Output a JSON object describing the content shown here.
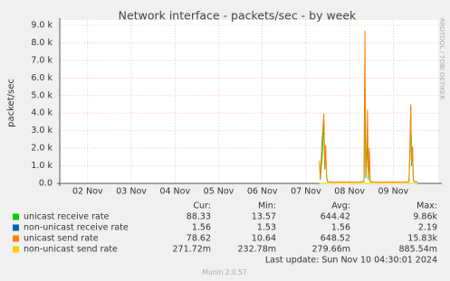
{
  "chart_data": {
    "type": "line",
    "title": "Network interface  - packets/sec - by week",
    "y_label": "packet/sec",
    "side_text": "RRDTOOL / TOBI OETIKER",
    "xlim": [
      1.36,
      10.03
    ],
    "xticks": [
      {
        "value": 2,
        "label": "02 Nov"
      },
      {
        "value": 3,
        "label": "03 Nov"
      },
      {
        "value": 4,
        "label": "04 Nov"
      },
      {
        "value": 5,
        "label": "05 Nov"
      },
      {
        "value": 6,
        "label": "06 Nov"
      },
      {
        "value": 7,
        "label": "07 Nov"
      },
      {
        "value": 8,
        "label": "08 Nov"
      },
      {
        "value": 9,
        "label": "09 Nov"
      }
    ],
    "ylim": [
      0,
      9000
    ],
    "yticks": [
      {
        "value": 0,
        "label": "0.0"
      },
      {
        "value": 1000,
        "label": "1.0 k"
      },
      {
        "value": 2000,
        "label": "2.0 k"
      },
      {
        "value": 3000,
        "label": "3.0 k"
      },
      {
        "value": 4000,
        "label": "4.0 k"
      },
      {
        "value": 5000,
        "label": "5.0 k"
      },
      {
        "value": 6000,
        "label": "6.0 k"
      },
      {
        "value": 7000,
        "label": "7.0 k"
      },
      {
        "value": 8000,
        "label": "8.0 k"
      },
      {
        "value": 9000,
        "label": "9.0 k"
      }
    ],
    "grid": true,
    "x": [
      7.31,
      7.33,
      7.37,
      7.41,
      7.43,
      7.45,
      7.47,
      7.49,
      7.53,
      7.6,
      7.8,
      8.0,
      8.2,
      8.33,
      8.35,
      8.37,
      8.39,
      8.41,
      8.43,
      8.45,
      8.47,
      8.49,
      8.54,
      8.7,
      8.9,
      9.1,
      9.3,
      9.36,
      9.38,
      9.4,
      9.42,
      9.44,
      9.46,
      9.48,
      9.5,
      9.55
    ],
    "series": [
      {
        "name": "unicast receive rate",
        "color": "#00cc00",
        "values": [
          1100,
          200,
          1500,
          3600,
          800,
          2100,
          400,
          100,
          90,
          80,
          80,
          80,
          80,
          100,
          5800,
          300,
          1200,
          2400,
          200,
          1800,
          100,
          90,
          85,
          80,
          80,
          80,
          80,
          100,
          1500,
          4400,
          1000,
          2000,
          200,
          90,
          88,
          88
        ]
      },
      {
        "name": "non-unicast receive rate",
        "color": "#0066b3",
        "values": [
          1.6,
          1.6,
          1.6,
          1.6,
          1.6,
          1.6,
          1.6,
          1.6,
          1.6,
          1.6,
          1.6,
          1.6,
          1.6,
          1.6,
          1.6,
          1.6,
          1.6,
          1.6,
          1.6,
          1.6,
          1.6,
          1.6,
          1.6,
          1.6,
          1.6,
          1.6,
          1.6,
          1.6,
          1.6,
          1.6,
          1.6,
          1.6,
          1.6,
          1.6,
          1.6,
          1.6
        ]
      },
      {
        "name": "unicast send rate",
        "color": "#ff8000",
        "values": [
          1300,
          300,
          2500,
          4000,
          900,
          2200,
          500,
          100,
          90,
          80,
          80,
          80,
          80,
          120,
          8700,
          500,
          1500,
          4200,
          300,
          2000,
          150,
          90,
          85,
          80,
          80,
          80,
          80,
          120,
          1800,
          4500,
          1200,
          2100,
          250,
          90,
          79,
          79
        ]
      },
      {
        "name": "non-unicast send rate",
        "color": "#ffcc00",
        "values": [
          0.28,
          0.28,
          0.28,
          0.28,
          0.28,
          0.28,
          0.28,
          0.28,
          0.28,
          0.28,
          0.28,
          0.28,
          0.28,
          0.28,
          0.28,
          0.28,
          0.28,
          0.28,
          0.28,
          0.28,
          0.28,
          0.28,
          0.28,
          0.28,
          0.28,
          0.28,
          0.28,
          0.28,
          0.28,
          0.28,
          0.28,
          0.28,
          0.28,
          0.28,
          0.28,
          0.28
        ]
      }
    ],
    "stats": {
      "headers": [
        "Cur:",
        "Min:",
        "Avg:",
        "Max:"
      ],
      "rows": [
        [
          "88.33",
          "13.57",
          "644.42",
          "9.86k"
        ],
        [
          "1.56",
          "1.53",
          "1.56",
          "2.19"
        ],
        [
          "78.62",
          "10.64",
          "648.52",
          "15.83k"
        ],
        [
          "271.72m",
          "232.78m",
          "279.66m",
          "885.54m"
        ]
      ]
    },
    "last_update": "Last update: Sun Nov 10 04:30:01 2024",
    "footer": "Munin 2.0.57"
  }
}
